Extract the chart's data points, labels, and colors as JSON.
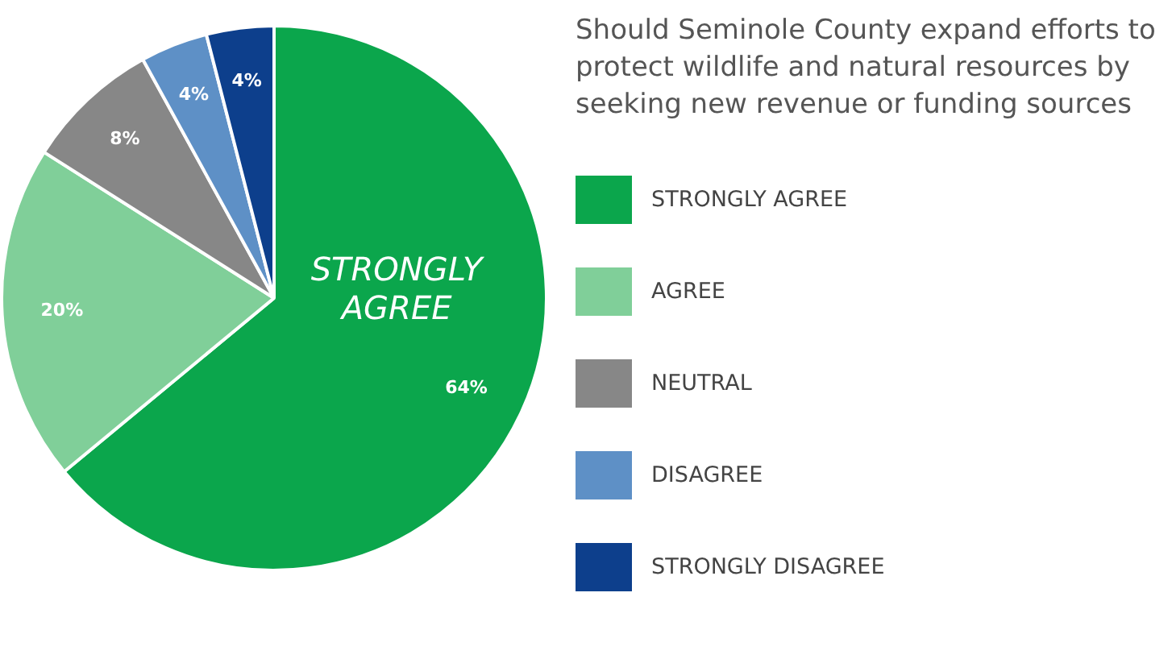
{
  "chart_data": {
    "type": "pie",
    "title": "Should Seminole County expand efforts to protect wildlife and natural resources by seeking new revenue or funding sources",
    "categories": [
      "STRONGLY AGREE",
      "AGREE",
      "NEUTRAL",
      "DISAGREE",
      "STRONGLY DISAGREE"
    ],
    "values": [
      64,
      20,
      8,
      4,
      4
    ],
    "value_labels": [
      "64%",
      "20%",
      "8%",
      "4%",
      "4%"
    ],
    "colors": [
      "#0ba64c",
      "#80cf99",
      "#878787",
      "#5e90c6",
      "#0d3f8c"
    ],
    "annotations": [
      "STRONGLY AGREE"
    ],
    "legend": "right"
  }
}
